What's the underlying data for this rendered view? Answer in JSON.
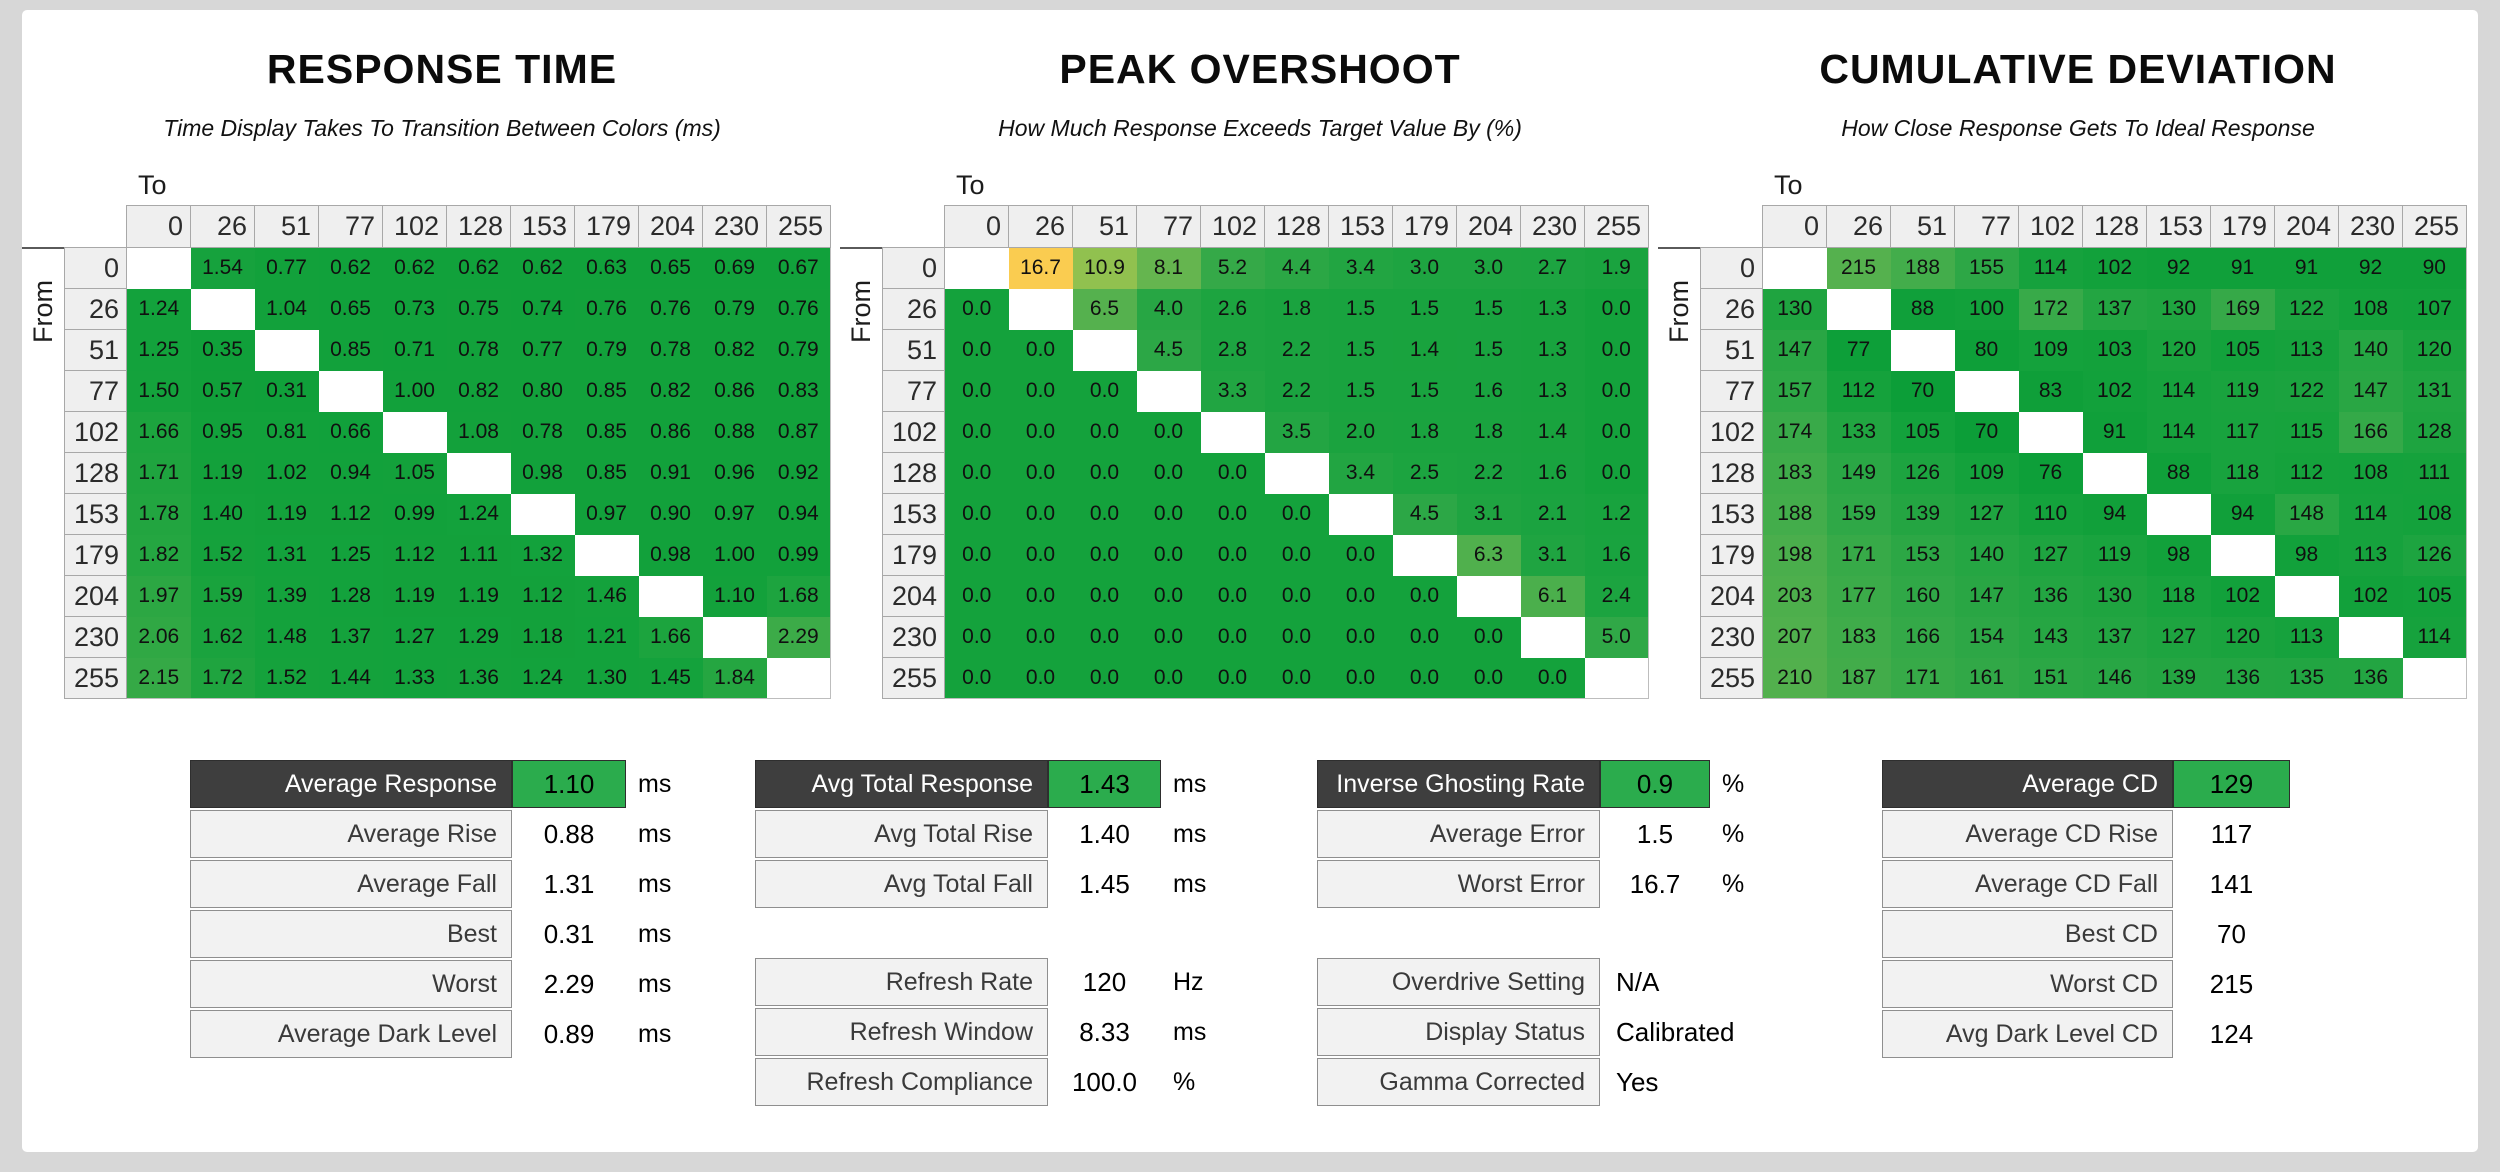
{
  "page": {
    "background": "#D7D7D7",
    "panel_background": "#FFFFFF"
  },
  "colors": {
    "green_base": "#14A23C",
    "overshoot_peak_yellow": "#FACC50",
    "summary_value_green": "#2BAC4D",
    "summary_header_dark": "#3E3E3E",
    "header_cell_gray": "#EFEFEF"
  },
  "chart_data": [
    {
      "type": "heatmap",
      "title": "RESPONSE TIME",
      "subtitle": "Time Display Takes To Transition Between Colors (ms)",
      "x_label": "To",
      "y_label": "From",
      "unit": "ms",
      "decimals": 2,
      "levels": [
        0,
        26,
        51,
        77,
        102,
        128,
        153,
        179,
        204,
        230,
        255
      ],
      "rows": [
        [
          null,
          1.54,
          0.77,
          0.62,
          0.62,
          0.62,
          0.62,
          0.63,
          0.65,
          0.69,
          0.67
        ],
        [
          1.24,
          null,
          1.04,
          0.65,
          0.73,
          0.75,
          0.74,
          0.76,
          0.76,
          0.79,
          0.76
        ],
        [
          1.25,
          0.35,
          null,
          0.85,
          0.71,
          0.78,
          0.77,
          0.79,
          0.78,
          0.82,
          0.79
        ],
        [
          1.5,
          0.57,
          0.31,
          null,
          1.0,
          0.82,
          0.8,
          0.85,
          0.82,
          0.86,
          0.83
        ],
        [
          1.66,
          0.95,
          0.81,
          0.66,
          null,
          1.08,
          0.78,
          0.85,
          0.86,
          0.88,
          0.87
        ],
        [
          1.71,
          1.19,
          1.02,
          0.94,
          1.05,
          null,
          0.98,
          0.85,
          0.91,
          0.96,
          0.92
        ],
        [
          1.78,
          1.4,
          1.19,
          1.12,
          0.99,
          1.24,
          null,
          0.97,
          0.9,
          0.97,
          0.94
        ],
        [
          1.82,
          1.52,
          1.31,
          1.25,
          1.12,
          1.11,
          1.32,
          null,
          0.98,
          1.0,
          0.99
        ],
        [
          1.97,
          1.59,
          1.39,
          1.28,
          1.19,
          1.19,
          1.12,
          1.46,
          null,
          1.1,
          1.68
        ],
        [
          2.06,
          1.62,
          1.48,
          1.37,
          1.27,
          1.29,
          1.18,
          1.21,
          1.66,
          null,
          2.29
        ],
        [
          2.15,
          1.72,
          1.52,
          1.44,
          1.33,
          1.36,
          1.24,
          1.3,
          1.45,
          1.84,
          null
        ]
      ],
      "color_stops": [
        [
          0.3,
          "#10A03A"
        ],
        [
          1.5,
          "#14A23C"
        ],
        [
          2.3,
          "#3CAB48"
        ]
      ]
    },
    {
      "type": "heatmap",
      "title": "PEAK OVERSHOOT",
      "subtitle": "How Much Response Exceeds Target Value By (%)",
      "x_label": "To",
      "y_label": "From",
      "unit": "%",
      "decimals": 1,
      "levels": [
        0,
        26,
        51,
        77,
        102,
        128,
        153,
        179,
        204,
        230,
        255
      ],
      "rows": [
        [
          null,
          16.7,
          10.9,
          8.1,
          5.2,
          4.4,
          3.4,
          3.0,
          3.0,
          2.7,
          1.9
        ],
        [
          0.0,
          null,
          6.5,
          4.0,
          2.6,
          1.8,
          1.5,
          1.5,
          1.5,
          1.3,
          0.0
        ],
        [
          0.0,
          0.0,
          null,
          4.5,
          2.8,
          2.2,
          1.5,
          1.4,
          1.5,
          1.3,
          0.0
        ],
        [
          0.0,
          0.0,
          0.0,
          null,
          3.3,
          2.2,
          1.5,
          1.5,
          1.6,
          1.3,
          0.0
        ],
        [
          0.0,
          0.0,
          0.0,
          0.0,
          null,
          3.5,
          2.0,
          1.8,
          1.8,
          1.4,
          0.0
        ],
        [
          0.0,
          0.0,
          0.0,
          0.0,
          0.0,
          null,
          3.4,
          2.5,
          2.2,
          1.6,
          0.0
        ],
        [
          0.0,
          0.0,
          0.0,
          0.0,
          0.0,
          0.0,
          null,
          4.5,
          3.1,
          2.1,
          1.2
        ],
        [
          0.0,
          0.0,
          0.0,
          0.0,
          0.0,
          0.0,
          0.0,
          null,
          6.3,
          3.1,
          1.6
        ],
        [
          0.0,
          0.0,
          0.0,
          0.0,
          0.0,
          0.0,
          0.0,
          0.0,
          null,
          6.1,
          2.4
        ],
        [
          0.0,
          0.0,
          0.0,
          0.0,
          0.0,
          0.0,
          0.0,
          0.0,
          0.0,
          null,
          5.0
        ],
        [
          0.0,
          0.0,
          0.0,
          0.0,
          0.0,
          0.0,
          0.0,
          0.0,
          0.0,
          0.0,
          null
        ]
      ],
      "color_stops": [
        [
          0,
          "#14A23C"
        ],
        [
          3,
          "#1EA441"
        ],
        [
          5,
          "#30A847"
        ],
        [
          6.5,
          "#55B14E"
        ],
        [
          9,
          "#6EB84F"
        ],
        [
          12,
          "#A5C64F"
        ],
        [
          16.7,
          "#FACC50"
        ]
      ]
    },
    {
      "type": "heatmap",
      "title": "CUMULATIVE DEVIATION",
      "subtitle": "How Close Response Gets To Ideal Response",
      "x_label": "To",
      "y_label": "From",
      "unit": "",
      "decimals": 0,
      "levels": [
        0,
        26,
        51,
        77,
        102,
        128,
        153,
        179,
        204,
        230,
        255
      ],
      "rows": [
        [
          null,
          215,
          188,
          155,
          114,
          102,
          92,
          91,
          91,
          92,
          90
        ],
        [
          130,
          null,
          88,
          100,
          172,
          137,
          130,
          169,
          122,
          108,
          107
        ],
        [
          147,
          77,
          null,
          80,
          109,
          103,
          120,
          105,
          113,
          140,
          120
        ],
        [
          157,
          112,
          70,
          null,
          83,
          102,
          114,
          119,
          122,
          147,
          131
        ],
        [
          174,
          133,
          105,
          70,
          null,
          91,
          114,
          117,
          115,
          166,
          128
        ],
        [
          183,
          149,
          126,
          109,
          76,
          null,
          88,
          118,
          112,
          108,
          111
        ],
        [
          188,
          159,
          139,
          127,
          110,
          94,
          null,
          94,
          148,
          114,
          108
        ],
        [
          198,
          171,
          153,
          140,
          127,
          119,
          98,
          null,
          98,
          113,
          126
        ],
        [
          203,
          177,
          160,
          147,
          136,
          130,
          118,
          102,
          null,
          102,
          105
        ],
        [
          207,
          183,
          166,
          154,
          143,
          137,
          127,
          120,
          113,
          null,
          114
        ],
        [
          210,
          187,
          171,
          161,
          151,
          146,
          139,
          136,
          135,
          136,
          null
        ]
      ],
      "color_stops": [
        [
          70,
          "#0C9E38"
        ],
        [
          110,
          "#14A23C"
        ],
        [
          160,
          "#30A847"
        ],
        [
          215,
          "#55B14E"
        ]
      ]
    }
  ],
  "summaries": [
    {
      "blocks": [
        {
          "rows": [
            {
              "label": "Average Response",
              "value": "1.10",
              "unit": "ms",
              "header": true
            },
            {
              "label": "Average Rise",
              "value": "0.88",
              "unit": "ms"
            },
            {
              "label": "Average Fall",
              "value": "1.31",
              "unit": "ms"
            },
            {
              "label": "Best",
              "value": "0.31",
              "unit": "ms"
            },
            {
              "label": "Worst",
              "value": "2.29",
              "unit": "ms"
            },
            {
              "label": "Average Dark Level",
              "value": "0.89",
              "unit": "ms"
            }
          ]
        }
      ]
    },
    {
      "blocks": [
        {
          "rows": [
            {
              "label": "Avg Total Response",
              "value": "1.43",
              "unit": "ms",
              "header": true
            },
            {
              "label": "Avg Total Rise",
              "value": "1.40",
              "unit": "ms"
            },
            {
              "label": "Avg Total Fall",
              "value": "1.45",
              "unit": "ms"
            }
          ]
        },
        {
          "rows": [
            {
              "label": "Refresh Rate",
              "value": "120",
              "unit": "Hz"
            },
            {
              "label": "Refresh Window",
              "value": "8.33",
              "unit": "ms"
            },
            {
              "label": "Refresh Compliance",
              "value": "100.0",
              "unit": "%"
            }
          ]
        }
      ]
    },
    {
      "blocks": [
        {
          "rows": [
            {
              "label": "Inverse Ghosting Rate",
              "value": "0.9",
              "unit": "%",
              "header": true
            },
            {
              "label": "Average Error",
              "value": "1.5",
              "unit": "%"
            },
            {
              "label": "Worst Error",
              "value": "16.7",
              "unit": "%"
            }
          ]
        },
        {
          "rows": [
            {
              "label": "Overdrive Setting",
              "value": "N/A",
              "unit": "",
              "plain": true
            },
            {
              "label": "Display Status",
              "value": "Calibrated",
              "unit": "",
              "plain": true
            },
            {
              "label": "Gamma Corrected",
              "value": "Yes",
              "unit": "",
              "plain": true
            }
          ]
        }
      ]
    },
    {
      "blocks": [
        {
          "rows": [
            {
              "label": "Average CD",
              "value": "129",
              "unit": "",
              "header": true
            },
            {
              "label": "Average CD Rise",
              "value": "117",
              "unit": ""
            },
            {
              "label": "Average CD Fall",
              "value": "141",
              "unit": ""
            },
            {
              "label": "Best CD",
              "value": "70",
              "unit": ""
            },
            {
              "label": "Worst CD",
              "value": "215",
              "unit": ""
            },
            {
              "label": "Avg Dark Level CD",
              "value": "124",
              "unit": ""
            }
          ]
        }
      ]
    }
  ]
}
